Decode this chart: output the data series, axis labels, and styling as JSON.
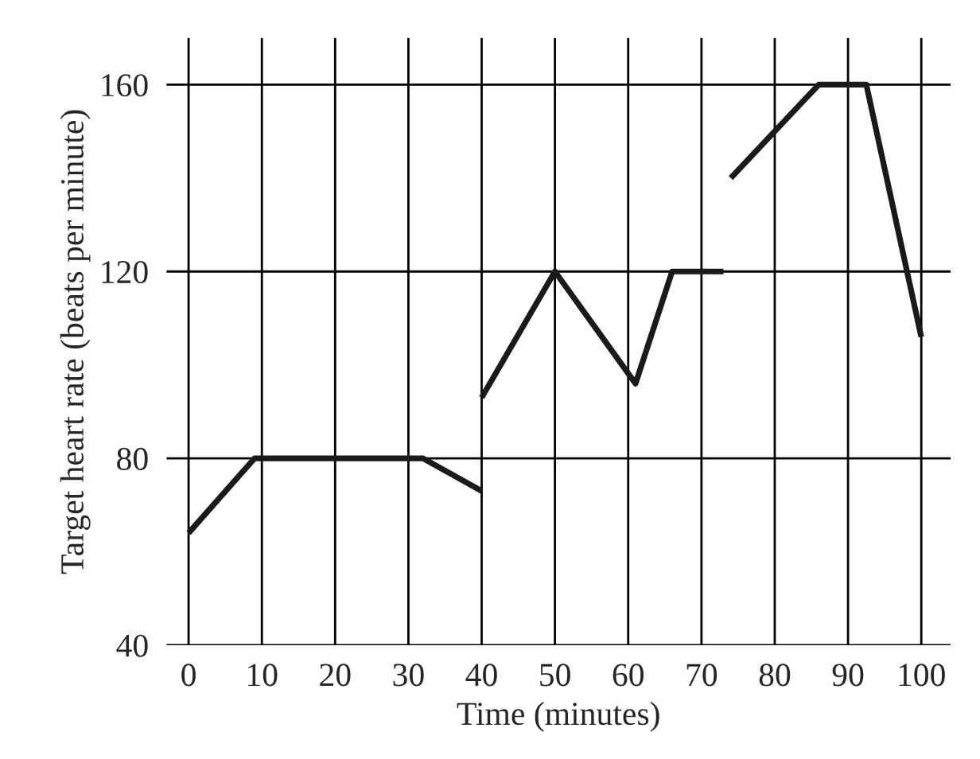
{
  "chart_data": {
    "type": "line",
    "xlabel": "Time (minutes)",
    "ylabel": "Target heart rate (beats per minute)",
    "xlim": [
      -3,
      104
    ],
    "ylim": [
      40,
      170
    ],
    "xticks": [
      0,
      10,
      20,
      30,
      40,
      50,
      60,
      70,
      80,
      90,
      100
    ],
    "yticks": [
      40,
      80,
      120,
      160
    ],
    "grid": true,
    "marker": "none",
    "line_style": "solid",
    "series": [
      {
        "color": "#1a1a1a",
        "x": [
          0,
          9,
          32,
          40
        ],
        "values": [
          64,
          80,
          80,
          73
        ]
      },
      {
        "color": "#1a1a1a",
        "x": [
          40,
          50,
          61,
          66,
          73
        ],
        "values": [
          93,
          120,
          96,
          120,
          120
        ]
      },
      {
        "color": "#1a1a1a",
        "x": [
          74,
          86,
          92.5,
          100
        ],
        "values": [
          140,
          160,
          160,
          106
        ]
      }
    ]
  }
}
